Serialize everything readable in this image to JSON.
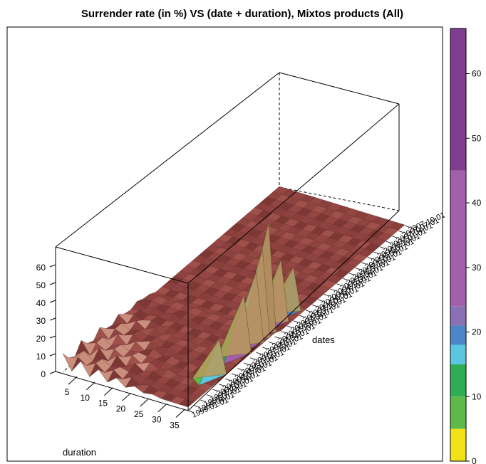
{
  "chart_data": {
    "type": "surface",
    "title": "Surrender rate (in %) VS (date + duration), Mixtos products (All)",
    "xlabel": "duration",
    "ylabel": "dates",
    "zlabel": "",
    "zlim": [
      0,
      70
    ],
    "duration_ticks": [
      5,
      10,
      15,
      20,
      25,
      30,
      35
    ],
    "rate_ticks": [
      0,
      10,
      20,
      30,
      40,
      50,
      60
    ],
    "date_ticks": [
      "1999.01.01",
      "1999.04.01",
      "1999.07.01",
      "1999.10.01",
      "2000.01.01",
      "2000.04.01",
      "2000.07.01",
      "2000.10.01",
      "2001.01.01",
      "2001.04.01",
      "2001.07.01",
      "2001.10.01",
      "2002.01.01",
      "2002.04.01",
      "2002.07.01",
      "2002.10.01",
      "2003.01.01",
      "2003.04.01",
      "2003.07.01",
      "2003.10.01",
      "2004.01.01",
      "2004.04.01",
      "2004.07.01",
      "2004.10.01",
      "2005.01.01",
      "2005.04.01",
      "2005.07.01",
      "2005.10.01",
      "2006.01.01",
      "2006.04.01",
      "2006.07.01",
      "2006.10.01",
      "2007.01.01",
      "2007.04.01",
      "2007.07.01",
      "2007.10.01"
    ],
    "colorbar": {
      "ticks": [
        0,
        10,
        20,
        30,
        40,
        50,
        60
      ],
      "bands": [
        {
          "from": 0,
          "to": 5,
          "color": "#f2e318"
        },
        {
          "from": 5,
          "to": 10,
          "color": "#5dba4a"
        },
        {
          "from": 10,
          "to": 15,
          "color": "#2fad55"
        },
        {
          "from": 15,
          "to": 18,
          "color": "#5cc6e0"
        },
        {
          "from": 18,
          "to": 21,
          "color": "#4a86c8"
        },
        {
          "from": 21,
          "to": 24,
          "color": "#8b70b6"
        },
        {
          "from": 24,
          "to": 45,
          "color": "#a35fab"
        },
        {
          "from": 45,
          "to": 67,
          "color": "#7e3d8e"
        }
      ]
    },
    "surface_peaks": [
      {
        "date": "2002.04.01",
        "duration": 36,
        "rate": 67
      },
      {
        "date": "2002.01.01",
        "duration": 36,
        "rate": 55
      },
      {
        "date": "2001.10.01",
        "duration": 36,
        "rate": 45
      },
      {
        "date": "2002.10.01",
        "duration": 36,
        "rate": 40
      },
      {
        "date": "2001.04.01",
        "duration": 36,
        "rate": 38
      },
      {
        "date": "2003.04.01",
        "duration": 36,
        "rate": 30
      },
      {
        "date": "2000.04.01",
        "duration": 36,
        "rate": 25
      }
    ]
  }
}
